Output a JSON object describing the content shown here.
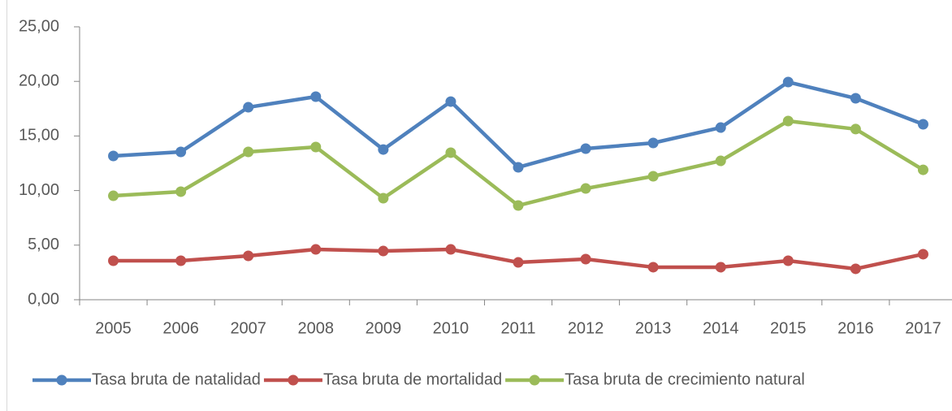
{
  "chart_data": {
    "type": "line",
    "categories": [
      "2005",
      "2006",
      "2007",
      "2008",
      "2009",
      "2010",
      "2011",
      "2012",
      "2013",
      "2014",
      "2015",
      "2016",
      "2017"
    ],
    "series": [
      {
        "name": "Tasa bruta de natalidad",
        "color": "#4f81bd",
        "values": [
          13.17,
          13.54,
          17.63,
          18.6,
          13.76,
          18.15,
          12.13,
          13.84,
          14.36,
          15.77,
          19.94,
          18.45,
          16.07
        ]
      },
      {
        "name": "Tasa bruta de mortalidad",
        "color": "#c0504d",
        "values": [
          3.57,
          3.57,
          4.02,
          4.61,
          4.46,
          4.61,
          3.42,
          3.72,
          2.98,
          2.98,
          3.57,
          2.83,
          4.17
        ]
      },
      {
        "name": "Tasa bruta de crecimiento natural",
        "color": "#9bbb59",
        "values": [
          9.52,
          9.9,
          13.54,
          13.99,
          9.3,
          13.47,
          8.63,
          10.19,
          11.31,
          12.72,
          16.37,
          15.63,
          11.9
        ]
      }
    ],
    "ylim": [
      0,
      25
    ],
    "yticks": [
      {
        "value": 0,
        "label": "0,00"
      },
      {
        "value": 5,
        "label": "5,00"
      },
      {
        "value": 10,
        "label": "10,00"
      },
      {
        "value": 15,
        "label": "15,00"
      },
      {
        "value": 20,
        "label": "20,00"
      },
      {
        "value": 25,
        "label": "25,00"
      }
    ],
    "legend": "bottom"
  }
}
